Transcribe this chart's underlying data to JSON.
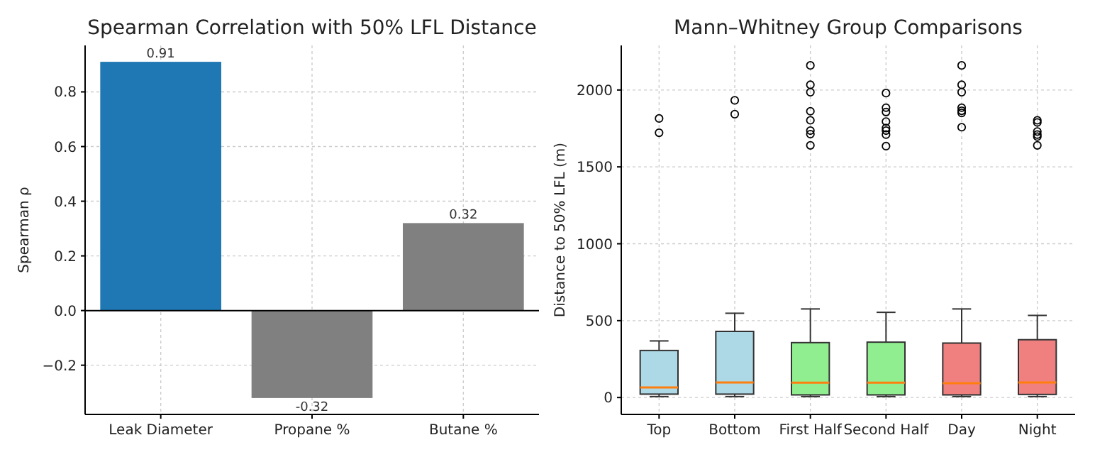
{
  "chart_data": [
    {
      "type": "bar",
      "title": "Spearman Correlation with 50% LFL Distance",
      "ylabel": "Spearman ρ",
      "categories": [
        "Leak Diameter",
        "Propane %",
        "Butane %"
      ],
      "values": [
        0.91,
        -0.32,
        0.32
      ],
      "colors": [
        "#1f77b4",
        "#808080",
        "#808080"
      ],
      "data_labels": true,
      "ylim": [
        -0.38,
        0.97
      ],
      "yticks": [
        {
          "value": -0.2,
          "label": "−0.2"
        },
        {
          "value": 0,
          "label": "0.0"
        },
        {
          "value": 0.2,
          "label": "0.2"
        },
        {
          "value": 0.4,
          "label": "0.4"
        },
        {
          "value": 0.6,
          "label": "0.6"
        },
        {
          "value": 0.8,
          "label": "0.8"
        }
      ],
      "grid": true,
      "ref_lines": [
        {
          "axis": "y",
          "value": 0,
          "color": "#000000"
        }
      ]
    },
    {
      "type": "box",
      "title": "Mann–Whitney Group Comparisons",
      "ylabel": "Distance to 50% LFL (m)",
      "categories": [
        "Top",
        "Bottom",
        "First Half",
        "Second Half",
        "Day",
        "Night"
      ],
      "colors": [
        "#add8e6",
        "#add8e6",
        "#90ee90",
        "#90ee90",
        "#f08080",
        "#f08080"
      ],
      "ylim": [
        -110,
        2290
      ],
      "yticks": [
        0,
        500,
        1000,
        1500,
        2000
      ],
      "grid": true,
      "boxes": [
        {
          "low": 6,
          "q1": 22,
          "median": 65,
          "q3": 306,
          "high": 368,
          "outliers": [
            1815,
            1722
          ]
        },
        {
          "low": 6,
          "q1": 22,
          "median": 98,
          "q3": 430,
          "high": 548,
          "outliers": [
            1933,
            1843
          ]
        },
        {
          "low": 6,
          "q1": 17,
          "median": 96,
          "q3": 357,
          "high": 576,
          "outliers": [
            2160,
            2034,
            1986,
            1862,
            1803,
            1736,
            1713,
            1640
          ]
        },
        {
          "low": 6,
          "q1": 17,
          "median": 96,
          "q3": 360,
          "high": 554,
          "outliers": [
            1980,
            1885,
            1857,
            1795,
            1753,
            1736,
            1710,
            1635
          ]
        },
        {
          "low": 6,
          "q1": 17,
          "median": 93,
          "q3": 354,
          "high": 576,
          "outliers": [
            2160,
            2034,
            1986,
            1885,
            1865,
            1851,
            1758
          ]
        },
        {
          "low": 6,
          "q1": 20,
          "median": 98,
          "q3": 376,
          "high": 534,
          "outliers": [
            1803,
            1789,
            1730,
            1710,
            1697,
            1640
          ]
        }
      ]
    }
  ]
}
